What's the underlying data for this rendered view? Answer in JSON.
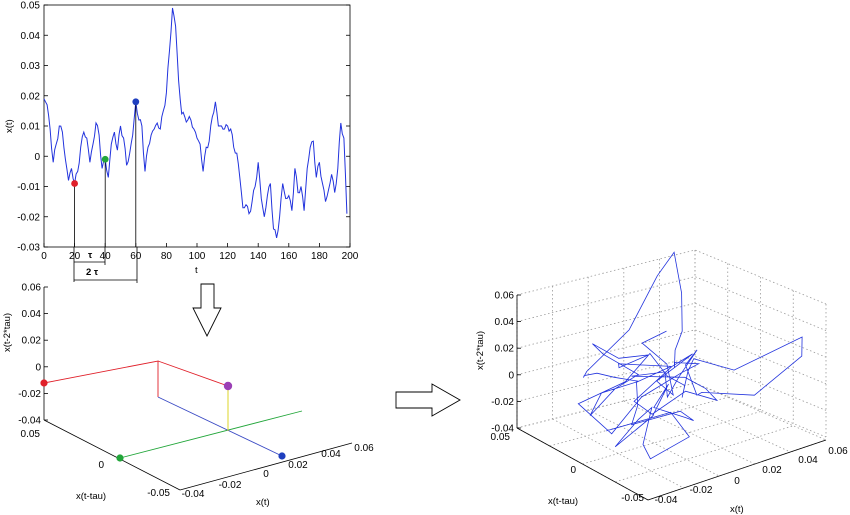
{
  "time_series": {
    "xlabel": "t",
    "ylabel": "x(t)",
    "xticks": [
      "0",
      "20",
      "40",
      "60",
      "80",
      "100",
      "120",
      "140",
      "160",
      "180",
      "200"
    ],
    "yticks": [
      "0.05",
      "0.04",
      "0.03",
      "0.02",
      "0.01",
      "0",
      "-0.01",
      "-0.02",
      "-0.03"
    ],
    "tau_label": "τ",
    "two_tau_label": "2 τ",
    "marker_colors": {
      "red": "#e0202a",
      "green": "#22a63a",
      "blue": "#1f3fbf"
    }
  },
  "embedding_schematic": {
    "zlabel": "x(t-2*tau)",
    "ylabel": "x(t-tau)",
    "xlabel": "x(t)",
    "zticks": [
      "0.06",
      "0.04",
      "0.02",
      "0",
      "-0.02",
      "-0.04"
    ],
    "yticks": [
      "0.05",
      "0",
      "-0.05"
    ],
    "xticks": [
      "-0.04",
      "-0.02",
      "0",
      "0.02",
      "0.04",
      "0.06"
    ],
    "point_color": "#9b3fb5"
  },
  "attractor": {
    "zlabel": "x(t-2*tau)",
    "ylabel": "x(t-tau)",
    "xlabel": "x(t)",
    "zticks": [
      "0.06",
      "0.04",
      "0.02",
      "0",
      "-0.02",
      "-0.04"
    ],
    "yticks": [
      "0.05",
      "0",
      "-0.05"
    ],
    "xticks": [
      "-0.04",
      "-0.02",
      "0",
      "0.02",
      "0.04",
      "0.06"
    ],
    "line_color": "#2233dd"
  },
  "chart_data": [
    {
      "type": "line",
      "xlabel": "t",
      "ylabel": "x(t)",
      "xlim": [
        0,
        200
      ],
      "ylim": [
        -0.03,
        0.05
      ],
      "x": [
        0,
        2,
        4,
        6,
        8,
        10,
        12,
        14,
        16,
        18,
        20,
        22,
        24,
        26,
        28,
        30,
        32,
        34,
        36,
        38,
        40,
        42,
        44,
        46,
        48,
        50,
        52,
        54,
        56,
        58,
        60,
        62,
        64,
        66,
        68,
        70,
        72,
        74,
        76,
        78,
        80,
        82,
        84,
        86,
        88,
        90,
        92,
        94,
        96,
        98,
        100,
        102,
        104,
        106,
        108,
        110,
        112,
        114,
        116,
        118,
        120,
        122,
        124,
        126,
        128,
        130,
        132,
        134,
        136,
        138,
        140,
        142,
        144,
        146,
        148,
        150,
        152,
        154,
        156,
        158,
        160,
        162,
        164,
        166,
        168,
        170,
        172,
        174,
        176,
        178,
        180,
        182,
        184,
        186,
        188,
        190,
        192,
        194,
        196,
        198
      ],
      "y": [
        0.019,
        0.017,
        0.009,
        -0.002,
        0.004,
        0.01,
        0.008,
        -0.001,
        -0.008,
        -0.004,
        -0.009,
        -0.005,
        0.003,
        0.008,
        0.006,
        -0.002,
        0.004,
        0.011,
        0.007,
        -0.004,
        -0.001,
        -0.007,
        0.004,
        0.008,
        0.002,
        0.01,
        0.006,
        -0.003,
        0.001,
        0.007,
        0.018,
        0.012,
        0.01,
        -0.005,
        0.003,
        0.007,
        0.009,
        0.011,
        0.009,
        0.015,
        0.021,
        0.035,
        0.049,
        0.043,
        0.025,
        0.014,
        0.013,
        0.012,
        0.012,
        0.009,
        0.006,
        0.004,
        -0.005,
        0.003,
        0.005,
        0.013,
        0.018,
        0.01,
        0.01,
        0.009,
        0.01,
        0.009,
        0.003,
        0.001,
        -0.007,
        -0.017,
        -0.016,
        -0.019,
        -0.015,
        -0.01,
        -0.002,
        -0.014,
        -0.02,
        -0.013,
        -0.009,
        -0.024,
        -0.027,
        -0.02,
        -0.009,
        -0.014,
        -0.013,
        -0.018,
        -0.004,
        -0.012,
        -0.01,
        -0.018,
        -0.004,
        0.003,
        0.005,
        -0.007,
        -0.002,
        -0.009,
        -0.015,
        -0.011,
        -0.006,
        -0.012,
        -0.004,
        0.011,
        0.006,
        -0.019
      ],
      "markers": [
        {
          "t": 20,
          "value": -0.009,
          "color": "red"
        },
        {
          "t": 40,
          "value": -0.001,
          "color": "green"
        },
        {
          "t": 60,
          "value": 0.018,
          "color": "blue"
        }
      ]
    }
  ]
}
